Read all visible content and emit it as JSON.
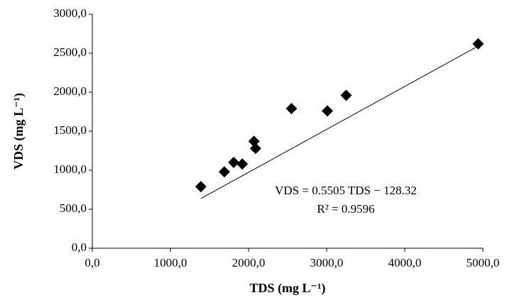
{
  "chart_data": {
    "type": "scatter",
    "x_label": "TDS (mg L⁻¹)",
    "y_label": "VDS (mg L⁻¹)",
    "annotations": [
      "VDS = 0.5505 TDS − 128.32",
      "R² = 0.9596"
    ],
    "trendline": {
      "slope": 0.5505,
      "intercept": -128.32
    },
    "color": "#000000",
    "series": [
      {
        "x": [
          1390,
          1690,
          1810,
          1920,
          2070,
          2090,
          2550,
          3010,
          3250,
          4940
        ],
        "values": [
          790,
          980,
          1100,
          1080,
          1370,
          1280,
          1790,
          1760,
          1960,
          2620
        ]
      }
    ],
    "xlim": [
      0,
      5000
    ],
    "xticks": [
      {
        "value": 0,
        "label": "0,0"
      },
      {
        "value": 1000,
        "label": "1000,0"
      },
      {
        "value": 2000,
        "label": "2000,0"
      },
      {
        "value": 3000,
        "label": "3000,0"
      },
      {
        "value": 4000,
        "label": "4000,0"
      },
      {
        "value": 5000,
        "label": "5000,0"
      }
    ],
    "ylim": [
      0,
      3000
    ],
    "yticks": [
      {
        "value": 0,
        "label": "0,0"
      },
      {
        "value": 500,
        "label": "500,0"
      },
      {
        "value": 1000,
        "label": "1000,0"
      },
      {
        "value": 1500,
        "label": "1500,0"
      },
      {
        "value": 2000,
        "label": "2000,0"
      },
      {
        "value": 2500,
        "label": "2500,0"
      },
      {
        "value": 3000,
        "label": "3000,0"
      }
    ],
    "grid": false
  }
}
